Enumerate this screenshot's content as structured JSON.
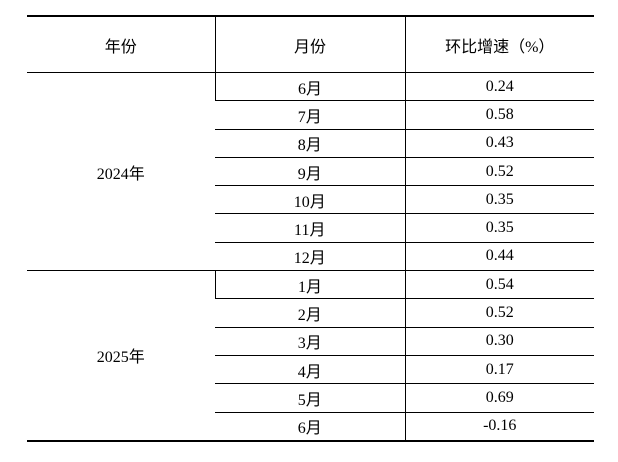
{
  "table": {
    "header": [
      "年份",
      "月份",
      "环比增速（%）"
    ],
    "groups": [
      {
        "year": "2024年",
        "rows": [
          [
            "6月",
            "0.24"
          ],
          [
            "7月",
            "0.58"
          ],
          [
            "8月",
            "0.43"
          ],
          [
            "9月",
            "0.52"
          ],
          [
            "10月",
            "0.35"
          ],
          [
            "11月",
            "0.35"
          ],
          [
            "12月",
            "0.44"
          ]
        ]
      },
      {
        "year": "2025年",
        "rows": [
          [
            "1月",
            "0.54"
          ],
          [
            "2月",
            "0.52"
          ],
          [
            "3月",
            "0.30"
          ],
          [
            "4月",
            "0.17"
          ],
          [
            "5月",
            "0.69"
          ],
          [
            "6月",
            "-0.16"
          ]
        ]
      }
    ]
  }
}
